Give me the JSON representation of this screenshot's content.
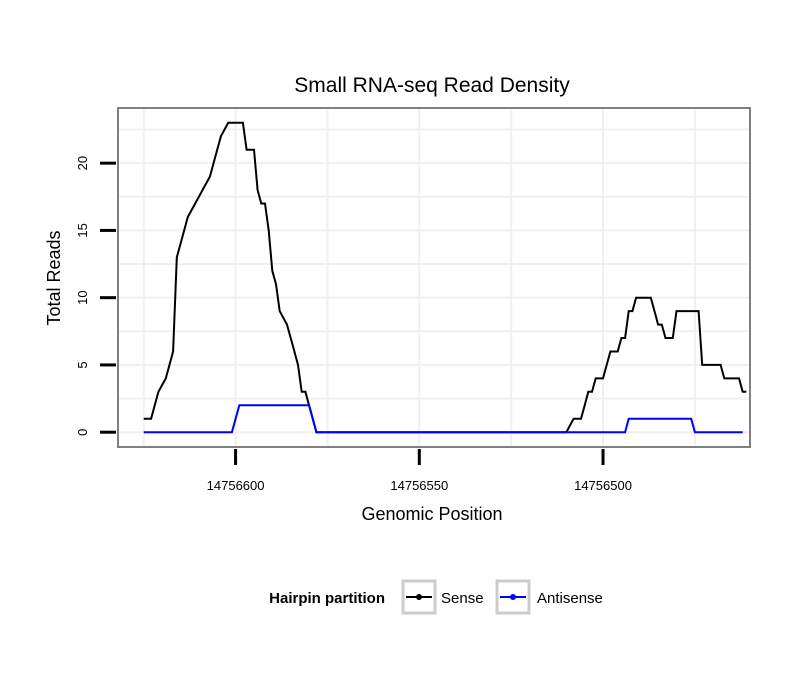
{
  "chart_data": {
    "type": "line",
    "title": "Small RNA-seq Read Density",
    "xlabel": "Genomic Position",
    "ylabel": "Total Reads",
    "x_reversed": true,
    "xlim": [
      14756632,
      14756460
    ],
    "ylim": [
      -1.1,
      24.1
    ],
    "x_ticks": [
      14756600,
      14756550,
      14756500
    ],
    "x_tick_labels": [
      "14756600",
      "14756550",
      "14756500"
    ],
    "y_ticks": [
      0,
      5,
      10,
      15,
      20
    ],
    "y_tick_labels": [
      "0",
      "5",
      "10",
      "15",
      "20"
    ],
    "grid": true,
    "legend": {
      "title": "Hairpin partition",
      "position": "bottom"
    },
    "series": [
      {
        "name": "Sense",
        "color": "#000000",
        "points": [
          [
            14756625,
            1
          ],
          [
            14756623,
            1
          ],
          [
            14756621,
            3
          ],
          [
            14756619,
            4
          ],
          [
            14756617,
            6
          ],
          [
            14756616,
            13
          ],
          [
            14756615,
            14
          ],
          [
            14756613,
            16
          ],
          [
            14756611,
            17
          ],
          [
            14756609,
            18
          ],
          [
            14756607,
            19
          ],
          [
            14756605,
            21
          ],
          [
            14756604,
            22
          ],
          [
            14756602,
            23
          ],
          [
            14756598,
            23
          ],
          [
            14756597,
            21
          ],
          [
            14756595,
            21
          ],
          [
            14756594,
            18
          ],
          [
            14756593,
            17
          ],
          [
            14756592,
            17
          ],
          [
            14756591,
            15
          ],
          [
            14756590,
            12
          ],
          [
            14756589,
            11
          ],
          [
            14756588,
            9
          ],
          [
            14756586,
            8
          ],
          [
            14756585,
            7
          ],
          [
            14756584,
            6
          ],
          [
            14756583,
            5
          ],
          [
            14756582,
            3
          ],
          [
            14756581,
            3
          ],
          [
            14756578,
            0
          ],
          [
            14756510,
            0
          ],
          [
            14756508,
            1
          ],
          [
            14756506,
            1
          ],
          [
            14756505,
            2
          ],
          [
            14756504,
            3
          ],
          [
            14756503,
            3
          ],
          [
            14756502,
            4
          ],
          [
            14756500,
            4
          ],
          [
            14756499,
            5
          ],
          [
            14756498,
            6
          ],
          [
            14756496,
            6
          ],
          [
            14756495,
            7
          ],
          [
            14756494,
            7
          ],
          [
            14756493,
            9
          ],
          [
            14756492,
            9
          ],
          [
            14756491,
            10
          ],
          [
            14756487,
            10
          ],
          [
            14756486,
            9
          ],
          [
            14756485,
            8
          ],
          [
            14756484,
            8
          ],
          [
            14756483,
            7
          ],
          [
            14756481,
            7
          ],
          [
            14756480,
            9
          ],
          [
            14756474,
            9
          ],
          [
            14756473,
            5
          ],
          [
            14756468,
            5
          ],
          [
            14756467,
            4
          ],
          [
            14756463,
            4
          ],
          [
            14756462,
            3
          ],
          [
            14756461,
            3
          ]
        ]
      },
      {
        "name": "Antisense",
        "color": "#0000ff",
        "points": [
          [
            14756625,
            0
          ],
          [
            14756601,
            0
          ],
          [
            14756599,
            2
          ],
          [
            14756580,
            2
          ],
          [
            14756578,
            0
          ],
          [
            14756494,
            0
          ],
          [
            14756493,
            1
          ],
          [
            14756476,
            1
          ],
          [
            14756475,
            0
          ],
          [
            14756462,
            0
          ]
        ]
      }
    ]
  },
  "colors": {
    "sense": "#000000",
    "antisense": "#0000ff",
    "grid": "#f0f0f0",
    "panel_border": "#808080",
    "legend_key_border": "#cccccc"
  }
}
